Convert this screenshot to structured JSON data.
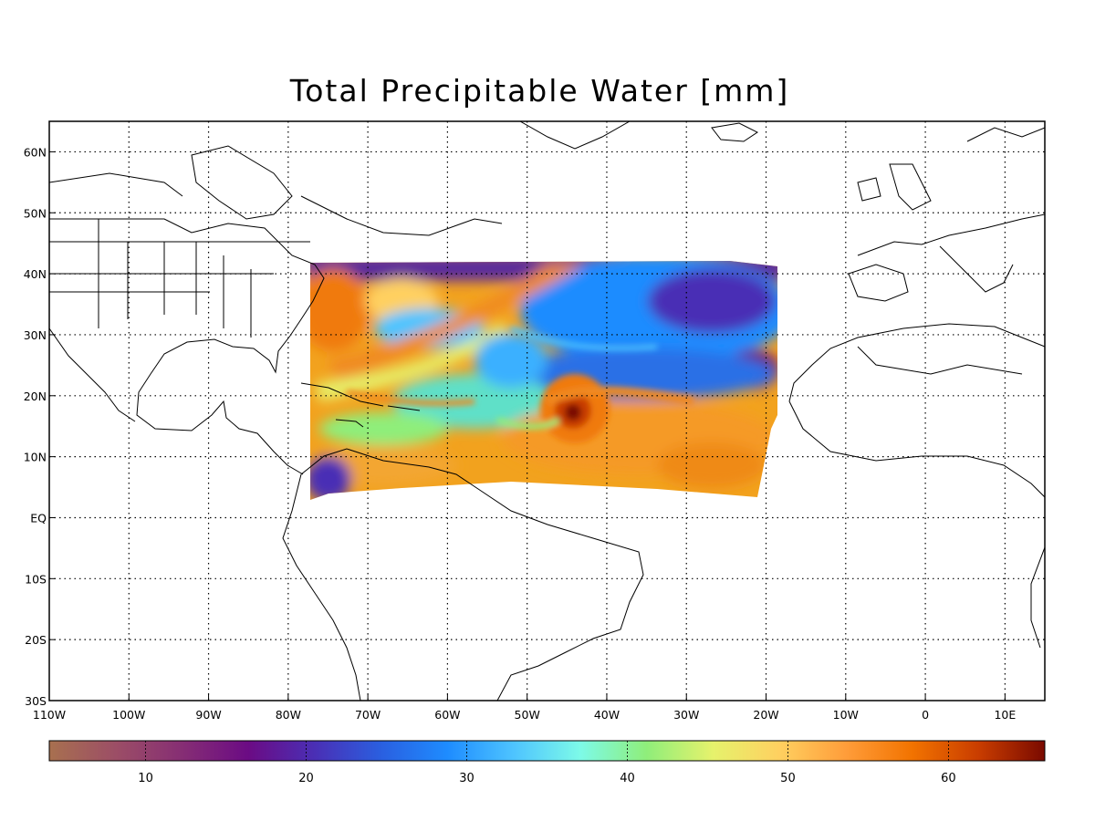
{
  "title": "Total Precipitable Water [mm]",
  "map": {
    "lon_range": [
      -110,
      15
    ],
    "lat_range": [
      -30,
      65
    ],
    "lon_ticks": [
      {
        "value": -110,
        "label": "110W"
      },
      {
        "value": -100,
        "label": "100W"
      },
      {
        "value": -90,
        "label": "90W"
      },
      {
        "value": -80,
        "label": "80W"
      },
      {
        "value": -70,
        "label": "70W"
      },
      {
        "value": -60,
        "label": "60W"
      },
      {
        "value": -50,
        "label": "50W"
      },
      {
        "value": -40,
        "label": "40W"
      },
      {
        "value": -30,
        "label": "30W"
      },
      {
        "value": -20,
        "label": "20W"
      },
      {
        "value": -10,
        "label": "10W"
      },
      {
        "value": 0,
        "label": "0"
      },
      {
        "value": 10,
        "label": "10E"
      }
    ],
    "lat_ticks": [
      {
        "value": 60,
        "label": "60N"
      },
      {
        "value": 50,
        "label": "50N"
      },
      {
        "value": 40,
        "label": "40N"
      },
      {
        "value": 30,
        "label": "30N"
      },
      {
        "value": 20,
        "label": "20N"
      },
      {
        "value": 10,
        "label": "10N"
      },
      {
        "value": 0,
        "label": "EQ"
      },
      {
        "value": -10,
        "label": "10S"
      },
      {
        "value": -20,
        "label": "20S"
      },
      {
        "value": -30,
        "label": "30S"
      }
    ],
    "gridlines": "dotted",
    "data_domain_lon": [
      -77,
      -18
    ],
    "data_domain_lat": [
      4,
      42
    ]
  },
  "colorbar": {
    "range": [
      4,
      66
    ],
    "ticks": [
      10,
      20,
      30,
      40,
      50,
      60
    ],
    "colors": [
      "#a8704f",
      "#9c4e66",
      "#862e74",
      "#6b0b84",
      "#4a2fb5",
      "#2a5fe0",
      "#1e8cff",
      "#4ec4ff",
      "#7dfae8",
      "#8fee7a",
      "#e6f26c",
      "#ffd060",
      "#ff9d3a",
      "#f27300",
      "#c93d00",
      "#7a0a00"
    ]
  },
  "features": {
    "hurricane_center": {
      "lon": -44,
      "lat": 17
    }
  }
}
